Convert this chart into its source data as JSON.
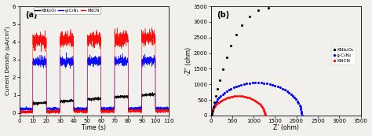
{
  "panel_a": {
    "title": "(a)",
    "xlabel": "Time (s)",
    "ylabel": "Current Density (μA/cm²)",
    "xlim": [
      0,
      110
    ],
    "ylim": [
      -0.15,
      6
    ],
    "yticks": [
      0,
      1,
      2,
      3,
      4,
      5,
      6
    ],
    "xticks": [
      0,
      10,
      20,
      30,
      40,
      50,
      60,
      70,
      80,
      90,
      100,
      110
    ],
    "legend_labels": [
      "KNb₂O₆",
      "g-C₃N₄",
      "KNCN"
    ],
    "legend_colors": [
      "black",
      "blue",
      "red"
    ],
    "on_intervals": [
      [
        10,
        20
      ],
      [
        30,
        40
      ],
      [
        50,
        60
      ],
      [
        70,
        80
      ],
      [
        90,
        100
      ]
    ],
    "black_on_base": 0.45,
    "black_off_base": 0.05,
    "black_drift": 0.006,
    "blue_on_base": 2.85,
    "blue_off_base": 0.22,
    "blue_drift": 0.001,
    "red_on_base": 4.05,
    "red_off_base": 0.05,
    "red_drift": 0.002,
    "noise_black": 0.04,
    "noise_blue": 0.13,
    "noise_red": 0.2
  },
  "panel_b": {
    "title": "(b)",
    "xlabel": "Z’ (ohm)",
    "ylabel": "-Z″ (ohm)",
    "xlim": [
      0,
      3500
    ],
    "ylim": [
      0,
      3500
    ],
    "xticks": [
      0,
      500,
      1000,
      1500,
      2000,
      2500,
      3000,
      3500
    ],
    "yticks": [
      0,
      500,
      1000,
      1500,
      2000,
      2500,
      3000,
      3500
    ],
    "legend_labels": [
      "KNb₂O₆",
      "g-C₃N₄",
      "KNCN"
    ],
    "black_zr": [
      10,
      20,
      35,
      55,
      80,
      115,
      160,
      215,
      285,
      370,
      470,
      590,
      730,
      900,
      1100,
      1350
    ],
    "black_zi": [
      30,
      80,
      160,
      280,
      430,
      620,
      860,
      1130,
      1480,
      1870,
      2230,
      2600,
      2900,
      3170,
      3380,
      3460
    ],
    "blue_Rs": 25,
    "blue_Rct": 2100,
    "red_Rs": 15,
    "red_Rct": 1250
  },
  "bg_color": "#f2f0ec",
  "fig_facecolor": "#f2f0ec"
}
